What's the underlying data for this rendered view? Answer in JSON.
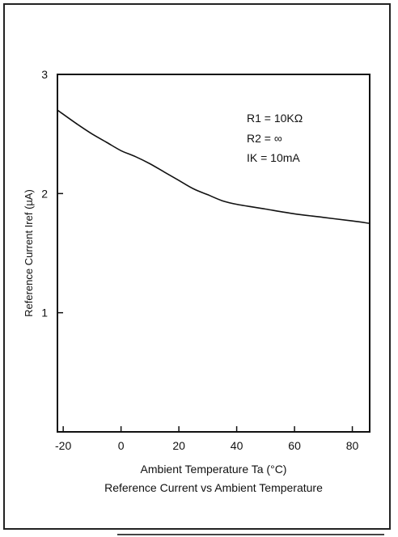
{
  "chart_data": {
    "type": "line",
    "title": "Reference Current vs Ambient Temperature",
    "xlabel": "Ambient Temperature Ta (°C)",
    "ylabel": "Reference Current Iref (µA)",
    "xlim": [
      -22,
      86
    ],
    "ylim": [
      0,
      3
    ],
    "x_ticks": [
      -20,
      0,
      20,
      40,
      60,
      80
    ],
    "y_ticks": [
      1,
      2,
      3
    ],
    "x_tick_labels": [
      "-20",
      "0",
      "20",
      "40",
      "60",
      "80"
    ],
    "y_tick_labels": [
      "1",
      "2",
      "3"
    ],
    "grid": false,
    "annotations": [
      "R1 = 10KΩ",
      "R2 = ∞",
      "IK = 10mA"
    ],
    "series": [
      {
        "x": [
          -22,
          -15,
          -10,
          -5,
          0,
          5,
          10,
          15,
          20,
          25,
          30,
          35,
          40,
          50,
          60,
          70,
          80,
          86
        ],
        "y": [
          2.7,
          2.58,
          2.5,
          2.43,
          2.36,
          2.31,
          2.25,
          2.18,
          2.11,
          2.04,
          1.99,
          1.94,
          1.91,
          1.87,
          1.83,
          1.8,
          1.77,
          1.75
        ]
      }
    ]
  }
}
